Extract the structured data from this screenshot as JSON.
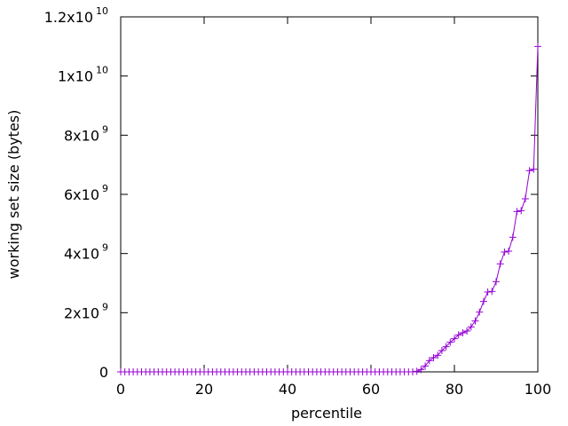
{
  "chart_data": {
    "type": "line",
    "title": "",
    "xlabel": "percentile",
    "ylabel": "working set size (bytes)",
    "xlim": [
      0,
      100
    ],
    "ylim": [
      0,
      12000000000
    ],
    "grid": false,
    "legend": "none",
    "marker": "plus",
    "line_color": "#9400d3",
    "x_ticks": [
      {
        "value": 0,
        "label": "0"
      },
      {
        "value": 20,
        "label": "20"
      },
      {
        "value": 40,
        "label": "40"
      },
      {
        "value": 60,
        "label": "60"
      },
      {
        "value": 80,
        "label": "80"
      },
      {
        "value": 100,
        "label": "100"
      }
    ],
    "y_ticks": [
      {
        "value": 0,
        "mantissa": "0",
        "exp": ""
      },
      {
        "value": 2000000000,
        "mantissa": "2x10",
        "exp": "9"
      },
      {
        "value": 4000000000,
        "mantissa": "4x10",
        "exp": "9"
      },
      {
        "value": 6000000000,
        "mantissa": "6x10",
        "exp": "9"
      },
      {
        "value": 8000000000,
        "mantissa": "8x10",
        "exp": "9"
      },
      {
        "value": 10000000000,
        "mantissa": "1x10",
        "exp": "10"
      },
      {
        "value": 12000000000,
        "mantissa": "1.2x10",
        "exp": "10"
      }
    ],
    "x": [
      0,
      1,
      2,
      3,
      4,
      5,
      6,
      7,
      8,
      9,
      10,
      11,
      12,
      13,
      14,
      15,
      16,
      17,
      18,
      19,
      20,
      21,
      22,
      23,
      24,
      25,
      26,
      27,
      28,
      29,
      30,
      31,
      32,
      33,
      34,
      35,
      36,
      37,
      38,
      39,
      40,
      41,
      42,
      43,
      44,
      45,
      46,
      47,
      48,
      49,
      50,
      51,
      52,
      53,
      54,
      55,
      56,
      57,
      58,
      59,
      60,
      61,
      62,
      63,
      64,
      65,
      66,
      67,
      68,
      69,
      70,
      71,
      72,
      73,
      74,
      75,
      76,
      77,
      78,
      79,
      80,
      81,
      82,
      83,
      84,
      85,
      86,
      87,
      88,
      89,
      90,
      91,
      92,
      93,
      94,
      95,
      96,
      97,
      98,
      99,
      100
    ],
    "y": [
      0,
      0,
      0,
      0,
      0,
      0,
      0,
      0,
      0,
      0,
      0,
      0,
      0,
      0,
      0,
      0,
      0,
      0,
      0,
      0,
      0,
      0,
      0,
      0,
      0,
      0,
      0,
      0,
      0,
      0,
      0,
      0,
      0,
      0,
      0,
      0,
      0,
      0,
      0,
      0,
      0,
      0,
      0,
      0,
      0,
      0,
      0,
      0,
      0,
      0,
      0,
      0,
      0,
      0,
      0,
      0,
      0,
      0,
      0,
      0,
      0,
      0,
      0,
      0,
      0,
      0,
      0,
      0,
      0,
      0,
      0,
      20000000,
      80000000,
      200000000,
      380000000,
      480000000,
      560000000,
      720000000,
      850000000,
      1000000000,
      1120000000,
      1250000000,
      1320000000,
      1380000000,
      1520000000,
      1720000000,
      2020000000,
      2380000000,
      2700000000,
      2720000000,
      3050000000,
      3650000000,
      4050000000,
      4080000000,
      4550000000,
      5420000000,
      5450000000,
      5850000000,
      6800000000,
      6850000000,
      11000000000
    ]
  }
}
